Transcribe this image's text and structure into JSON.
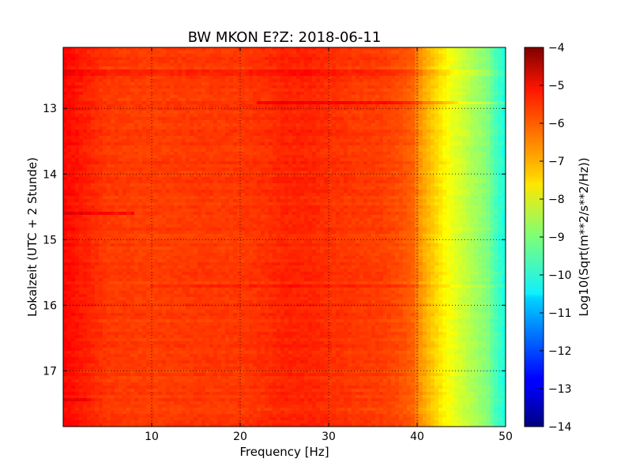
{
  "chart_data": {
    "type": "heatmap",
    "title": "BW MKON E?Z: 2018-06-11",
    "xlabel": "Frequency [Hz]",
    "ylabel": "Lokalzeit (UTC + 2 Stunde)",
    "colorbar_label": "Log10(Sqrt(m**2/s**2/Hz))",
    "xlim": [
      0,
      50
    ],
    "ylim": [
      12.07,
      17.85
    ],
    "y_inverted": true,
    "x_ticks": [
      10,
      20,
      30,
      40,
      50
    ],
    "x_tick_labels": [
      "10",
      "20",
      "30",
      "40",
      "50"
    ],
    "y_ticks": [
      13,
      14,
      15,
      16,
      17
    ],
    "y_tick_labels": [
      "13",
      "14",
      "15",
      "16",
      "17"
    ],
    "colorbar_ticks": [
      -4,
      -5,
      -6,
      -7,
      -8,
      -9,
      -10,
      -11,
      -12,
      -13,
      -14
    ],
    "colorbar_tick_labels": [
      "−4",
      "−5",
      "−6",
      "−7",
      "−8",
      "−9",
      "−10",
      "−11",
      "−12",
      "−13",
      "−14"
    ],
    "clim": [
      -14,
      -4
    ],
    "colormap": "jet",
    "grid": true,
    "frequency_profile": {
      "frequency_hz": [
        0,
        2,
        5,
        10,
        15,
        20,
        23,
        25,
        28,
        30,
        33,
        36,
        38,
        39.5,
        40.5,
        42,
        43.5,
        45,
        46.5,
        48,
        49,
        50
      ],
      "log10_amplitude": [
        -5.3,
        -5.5,
        -5.8,
        -5.85,
        -5.8,
        -5.8,
        -5.7,
        -5.6,
        -5.6,
        -5.7,
        -5.8,
        -5.85,
        -6.0,
        -6.2,
        -6.8,
        -7.3,
        -7.8,
        -8.2,
        -8.6,
        -9.0,
        -9.6,
        -10.0
      ]
    },
    "horizontal_features": [
      {
        "hour": 12.45,
        "freq_range": [
          0,
          50
        ],
        "delta": 0.2
      },
      {
        "hour": 12.92,
        "freq_range": [
          22,
          50
        ],
        "delta": 0.45
      },
      {
        "hour": 14.6,
        "freq_range": [
          0,
          8
        ],
        "delta": 0.4
      },
      {
        "hour": 15.7,
        "freq_range": [
          10,
          50
        ],
        "delta": 0.2
      },
      {
        "hour": 17.45,
        "freq_range": [
          0,
          3
        ],
        "delta": 0.3
      }
    ]
  }
}
